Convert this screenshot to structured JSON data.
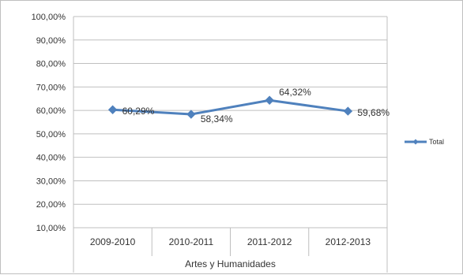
{
  "chart_data": {
    "type": "line",
    "categories": [
      "2009-2010",
      "2010-2011",
      "2011-2012",
      "2012-2013"
    ],
    "group_label": "Artes y Humanidades",
    "series": [
      {
        "name": "Total",
        "values": [
          60.29,
          58.34,
          64.32,
          59.68
        ],
        "color": "#4f81bd"
      }
    ],
    "data_labels": [
      "60,29%",
      "58,34%",
      "64,32%",
      "59,68%"
    ],
    "y_ticks": [
      10,
      20,
      30,
      40,
      50,
      60,
      70,
      80,
      90,
      100
    ],
    "y_tick_labels": [
      "10,00%",
      "20,00%",
      "30,00%",
      "40,00%",
      "50,00%",
      "60,00%",
      "70,00%",
      "80,00%",
      "90,00%",
      "100,00%"
    ],
    "ylim": [
      10,
      100
    ],
    "grid": true,
    "legend_position": "right"
  }
}
